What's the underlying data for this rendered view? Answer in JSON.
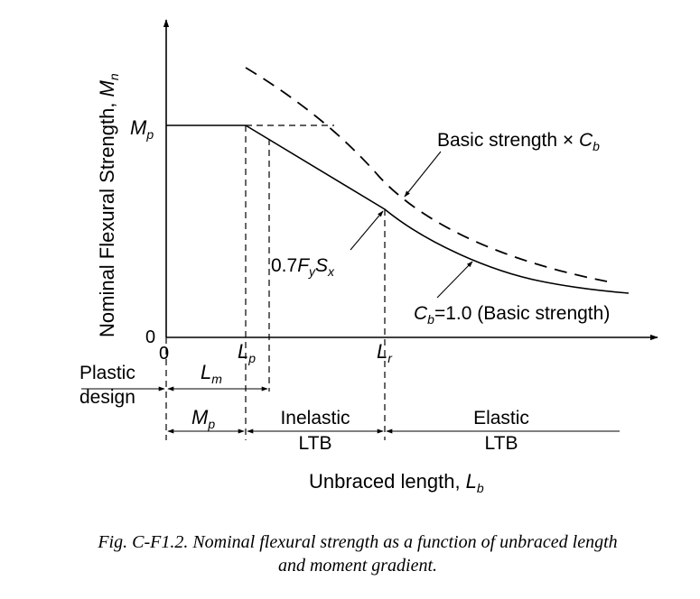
{
  "axes": {
    "y_label_prefix": "Nominal Flexural Strength, ",
    "y_label_symbol": "M",
    "y_label_sub": "n",
    "x_label_prefix": "Unbraced length, ",
    "x_label_symbol": "L",
    "x_label_sub": "b",
    "origin_y": "0",
    "origin_x": "0"
  },
  "ticks": {
    "mp_symbol": "M",
    "mp_sub": "p",
    "lp_symbol": "L",
    "lp_sub": "p",
    "lr_symbol": "L",
    "lr_sub": "r"
  },
  "annotations": {
    "basic_cb_text": "Basic strength × ",
    "basic_cb_symbol": "C",
    "basic_cb_sub": "b",
    "fy_prefix": "0.7",
    "fy_symbol": "F",
    "fy_sub": "y",
    "sx_symbol": "S",
    "sx_sub": "x",
    "cb1_symbol": "C",
    "cb1_sub": "b",
    "cb1_text": "=1.0 (Basic strength)"
  },
  "zones": {
    "plastic_line1": "Plastic",
    "plastic_line2": "design",
    "lm_symbol": "L",
    "lm_sub": "m",
    "mp_symbol": "M",
    "mp_sub": "p",
    "inelastic_line1": "Inelastic",
    "inelastic_line2": "LTB",
    "elastic_line1": "Elastic",
    "elastic_line2": "LTB"
  },
  "caption": {
    "line1": "Fig. C-F1.2.  Nominal flexural strength as a function of unbraced length",
    "line2": "and moment gradient."
  }
}
